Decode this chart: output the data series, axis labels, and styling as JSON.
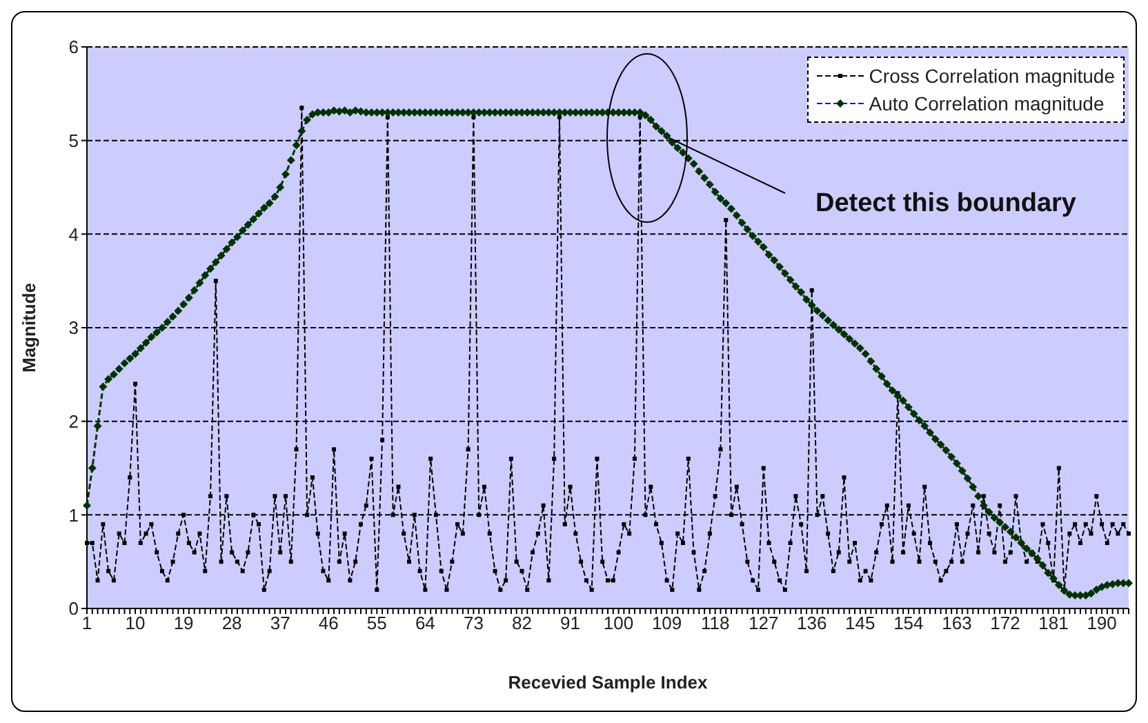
{
  "chart_data": {
    "type": "line",
    "xlabel": "Recevied Sample Index",
    "ylabel": "Magnitude",
    "categories": [
      "1",
      null,
      null,
      null,
      null,
      null,
      null,
      null,
      null,
      "10",
      null,
      null,
      null,
      null,
      null,
      null,
      null,
      null,
      "19",
      null,
      null,
      null,
      null,
      null,
      null,
      null,
      null,
      "28",
      null,
      null,
      null,
      null,
      null,
      null,
      null,
      null,
      "37",
      null,
      null,
      null,
      null,
      null,
      null,
      null,
      null,
      "46",
      null,
      null,
      null,
      null,
      null,
      null,
      null,
      null,
      "55",
      null,
      null,
      null,
      null,
      null,
      null,
      null,
      null,
      "64",
      null,
      null,
      null,
      null,
      null,
      null,
      null,
      null,
      "73",
      null,
      null,
      null,
      null,
      null,
      null,
      null,
      null,
      "82",
      null,
      null,
      null,
      null,
      null,
      null,
      null,
      null,
      "91",
      null,
      null,
      null,
      null,
      null,
      null,
      null,
      null,
      "100",
      null,
      null,
      null,
      null,
      null,
      null,
      null,
      null,
      "109",
      null,
      null,
      null,
      null,
      null,
      null,
      null,
      null,
      "118",
      null,
      null,
      null,
      null,
      null,
      null,
      null,
      null,
      "127",
      null,
      null,
      null,
      null,
      null,
      null,
      null,
      null,
      "136",
      null,
      null,
      null,
      null,
      null,
      null,
      null,
      null,
      "145",
      null,
      null,
      null,
      null,
      null,
      null,
      null,
      null,
      "154",
      null,
      null,
      null,
      null,
      null,
      null,
      null,
      null,
      "163",
      null,
      null,
      null,
      null,
      null,
      null,
      null,
      null,
      "172",
      null,
      null,
      null,
      null,
      null,
      null,
      null,
      null,
      "181",
      null,
      null,
      null,
      null,
      null,
      null,
      null,
      null,
      "190",
      null,
      null,
      null,
      null,
      null
    ],
    "series": [
      {
        "name": "Cross Correlation magnitude",
        "color": "#000000",
        "marker": "square",
        "line_style": "dashed",
        "values": [
          0.7,
          0.7,
          0.3,
          0.9,
          0.4,
          0.3,
          0.8,
          0.7,
          1.4,
          2.4,
          0.7,
          0.8,
          0.9,
          0.6,
          0.4,
          0.3,
          0.5,
          0.8,
          1.0,
          0.7,
          0.6,
          0.8,
          0.4,
          1.2,
          3.5,
          0.5,
          1.2,
          0.6,
          0.5,
          0.4,
          0.6,
          1.0,
          0.9,
          0.2,
          0.4,
          1.2,
          0.6,
          1.2,
          0.5,
          1.7,
          5.35,
          1.0,
          1.4,
          0.8,
          0.4,
          0.3,
          1.7,
          0.5,
          0.8,
          0.3,
          0.5,
          0.9,
          1.1,
          1.6,
          0.2,
          1.8,
          5.25,
          1.0,
          1.3,
          0.8,
          0.5,
          1.0,
          0.4,
          0.2,
          1.6,
          1.0,
          0.4,
          0.2,
          0.5,
          0.9,
          0.8,
          1.7,
          5.25,
          1.0,
          1.3,
          0.8,
          0.4,
          0.2,
          0.3,
          1.6,
          0.5,
          0.4,
          0.2,
          0.6,
          0.8,
          1.1,
          0.3,
          1.6,
          5.25,
          0.9,
          1.3,
          0.8,
          0.5,
          0.3,
          0.2,
          1.6,
          0.5,
          0.3,
          0.3,
          0.6,
          0.9,
          0.8,
          1.6,
          5.25,
          1.0,
          1.3,
          0.9,
          0.7,
          0.3,
          0.2,
          0.8,
          0.7,
          1.6,
          0.6,
          0.2,
          0.4,
          0.8,
          1.2,
          1.7,
          4.15,
          1.0,
          1.3,
          0.9,
          0.5,
          0.3,
          0.2,
          1.5,
          0.7,
          0.5,
          0.3,
          0.2,
          0.7,
          1.2,
          0.9,
          0.4,
          3.4,
          1.0,
          1.2,
          0.8,
          0.4,
          0.6,
          1.4,
          0.5,
          0.7,
          0.3,
          0.4,
          0.3,
          0.6,
          0.9,
          1.1,
          0.5,
          2.3,
          0.6,
          1.1,
          0.8,
          0.5,
          1.3,
          0.7,
          0.5,
          0.3,
          0.4,
          0.5,
          0.9,
          0.5,
          0.8,
          1.1,
          0.6,
          1.2,
          0.8,
          0.6,
          1.1,
          0.5,
          0.6,
          1.2,
          0.7,
          0.5,
          0.6,
          0.5,
          0.9,
          0.7,
          0.3,
          1.5,
          0.2,
          0.8,
          0.9,
          0.7,
          0.9,
          0.8,
          1.2,
          0.9,
          0.7,
          0.9,
          0.8,
          0.9,
          0.8
        ]
      },
      {
        "name": "Auto Correlation magnitude",
        "color": "#003300",
        "marker": "diamond",
        "line_style": "dashed",
        "values": [
          1.1,
          1.5,
          1.95,
          2.37,
          2.45,
          2.5,
          2.56,
          2.62,
          2.67,
          2.72,
          2.78,
          2.84,
          2.9,
          2.95,
          3.0,
          3.06,
          3.12,
          3.18,
          3.25,
          3.32,
          3.4,
          3.48,
          3.56,
          3.63,
          3.7,
          3.77,
          3.84,
          3.91,
          3.97,
          4.04,
          4.1,
          4.16,
          4.22,
          4.28,
          4.33,
          4.4,
          4.5,
          4.64,
          4.79,
          4.95,
          5.1,
          5.22,
          5.28,
          5.3,
          5.3,
          5.3,
          5.32,
          5.31,
          5.32,
          5.3,
          5.32,
          5.31,
          5.3,
          5.3,
          5.3,
          5.3,
          5.3,
          5.3,
          5.3,
          5.3,
          5.3,
          5.3,
          5.3,
          5.3,
          5.3,
          5.3,
          5.3,
          5.3,
          5.3,
          5.3,
          5.3,
          5.3,
          5.3,
          5.3,
          5.3,
          5.3,
          5.3,
          5.3,
          5.3,
          5.3,
          5.3,
          5.3,
          5.3,
          5.3,
          5.3,
          5.3,
          5.3,
          5.3,
          5.3,
          5.3,
          5.3,
          5.3,
          5.3,
          5.3,
          5.3,
          5.3,
          5.3,
          5.3,
          5.3,
          5.3,
          5.3,
          5.3,
          5.3,
          5.3,
          5.27,
          5.22,
          5.15,
          5.1,
          5.05,
          4.98,
          4.92,
          4.87,
          4.81,
          4.75,
          4.67,
          4.6,
          4.53,
          4.45,
          4.38,
          4.33,
          4.27,
          4.2,
          4.12,
          4.05,
          3.98,
          3.92,
          3.86,
          3.78,
          3.72,
          3.65,
          3.58,
          3.51,
          3.44,
          3.38,
          3.3,
          3.24,
          3.18,
          3.13,
          3.08,
          3.03,
          2.98,
          2.93,
          2.88,
          2.83,
          2.78,
          2.72,
          2.64,
          2.56,
          2.48,
          2.4,
          2.33,
          2.27,
          2.22,
          2.15,
          2.08,
          2.01,
          1.95,
          1.88,
          1.81,
          1.75,
          1.69,
          1.62,
          1.55,
          1.47,
          1.39,
          1.3,
          1.2,
          1.1,
          1.03,
          0.97,
          0.92,
          0.87,
          0.82,
          0.76,
          0.7,
          0.64,
          0.59,
          0.53,
          0.46,
          0.38,
          0.32,
          0.25,
          0.19,
          0.15,
          0.14,
          0.14,
          0.14,
          0.16,
          0.2,
          0.23,
          0.25,
          0.26,
          0.27,
          0.27,
          0.27
        ]
      }
    ],
    "ylim": [
      0,
      6
    ],
    "yticks": [
      0,
      1,
      2,
      3,
      4,
      5,
      6
    ],
    "grid": "y",
    "legend": "top right",
    "annotations": [
      {
        "text": "Detect this boundary",
        "x": "109",
        "y": 5.05
      }
    ]
  }
}
